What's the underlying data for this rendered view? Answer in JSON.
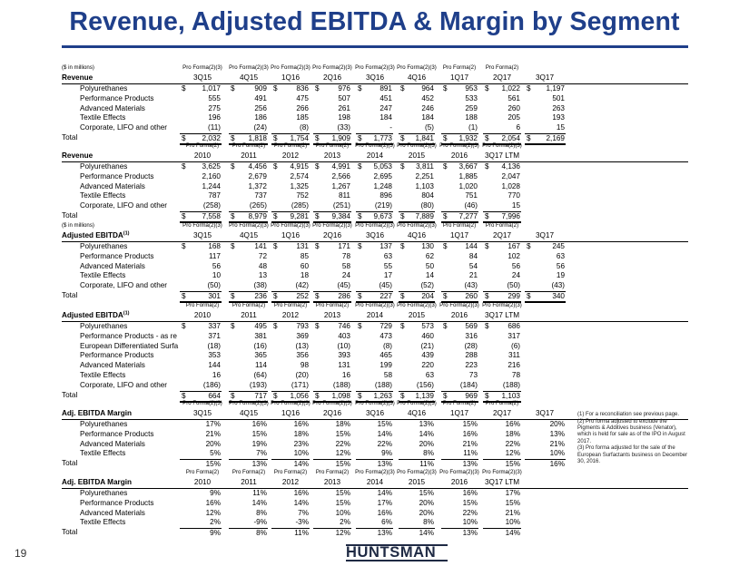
{
  "title": "Revenue, Adjusted EBITDA & Margin by Segment",
  "page_number": "19",
  "logo_text": "HUNTSMAN",
  "footnotes": [
    "(1) For a reconciliation see previous page.",
    "(2) Pro forma adjusted to exclude the Pigments & Additives business (Venator), which is held for sale as of the IPO in August 2017.",
    "(3) Pro forma adjusted for the sale of the European Surfactants business on December 30, 2016."
  ],
  "sections": [
    {
      "id": "rev-q",
      "top": 70,
      "unit": "($ in millions)",
      "title": "Revenue",
      "title_sup": "",
      "title_on_header_row": true,
      "pct": false,
      "pro_forma": [
        "Pro Forma(2)(3)",
        "Pro Forma(2)(3)",
        "Pro Forma(2)(3)",
        "Pro Forma(2)(3)",
        "Pro Forma(2)(3)",
        "Pro Forma(2)(3)",
        "Pro Forma(2)",
        "Pro Forma(2)",
        ""
      ],
      "periods": [
        "3Q15",
        "4Q15",
        "1Q16",
        "2Q16",
        "3Q16",
        "4Q16",
        "1Q17",
        "2Q17",
        "3Q17"
      ],
      "rows": [
        {
          "label": "Polyurethanes",
          "dollar": true,
          "values": [
            "1,017",
            "909",
            "836",
            "976",
            "891",
            "964",
            "953",
            "1,022",
            "1,197"
          ]
        },
        {
          "label": "Performance Products",
          "values": [
            "555",
            "491",
            "475",
            "507",
            "451",
            "452",
            "533",
            "561",
            "501"
          ]
        },
        {
          "label": "Advanced Materials",
          "values": [
            "275",
            "256",
            "266",
            "261",
            "247",
            "246",
            "259",
            "260",
            "263"
          ]
        },
        {
          "label": "Textile Effects",
          "values": [
            "196",
            "186",
            "185",
            "198",
            "184",
            "184",
            "188",
            "205",
            "193"
          ]
        },
        {
          "label": "Corporate, LIFO and other",
          "values": [
            "(11)",
            "(24)",
            "(8)",
            "(33)",
            "-",
            "(5)",
            "(1)",
            "6",
            "15"
          ]
        }
      ],
      "total": {
        "label": "Total",
        "values": [
          "2,032",
          "1,818",
          "1,754",
          "1,909",
          "1,773",
          "1,841",
          "1,932",
          "2,054",
          "2,169"
        ]
      }
    },
    {
      "id": "rev-y",
      "top": 156,
      "unit": "",
      "title": "Revenue",
      "title_sup": "",
      "title_on_header_row": false,
      "pct": false,
      "pro_forma": [
        "Pro Forma(2)",
        "Pro Forma(2)",
        "Pro Forma(2)",
        "Pro Forma(2)",
        "Pro Forma(2)(3)",
        "Pro Forma(2)(3)",
        "Pro Forma(2)(3)",
        "Pro Forma(2)(3)"
      ],
      "periods": [
        "2010",
        "2011",
        "2012",
        "2013",
        "2014",
        "2015",
        "2016",
        "3Q17 LTM"
      ],
      "rows": [
        {
          "label": "Polyurethanes",
          "dollar": true,
          "values": [
            "3,625",
            "4,456",
            "4,915",
            "4,991",
            "5,053",
            "3,811",
            "3,667",
            "4,136"
          ]
        },
        {
          "label": "Performance Products",
          "values": [
            "2,160",
            "2,679",
            "2,574",
            "2,566",
            "2,695",
            "2,251",
            "1,885",
            "2,047"
          ]
        },
        {
          "label": "Advanced Materials",
          "values": [
            "1,244",
            "1,372",
            "1,325",
            "1,267",
            "1,248",
            "1,103",
            "1,020",
            "1,028"
          ]
        },
        {
          "label": "Textile Effects",
          "values": [
            "787",
            "737",
            "752",
            "811",
            "896",
            "804",
            "751",
            "770"
          ]
        },
        {
          "label": "Corporate, LIFO and other",
          "values": [
            "(258)",
            "(265)",
            "(285)",
            "(251)",
            "(219)",
            "(80)",
            "(46)",
            "15"
          ]
        }
      ],
      "total": {
        "label": "Total",
        "values": [
          "7,558",
          "8,979",
          "9,281",
          "9,384",
          "9,673",
          "7,889",
          "7,277",
          "7,996"
        ]
      }
    },
    {
      "id": "ebitda-q",
      "top": 244,
      "unit": "($ in millions)",
      "title": "Adjusted EBITDA",
      "title_sup": "(1)",
      "title_on_header_row": false,
      "pct": false,
      "pro_forma": [
        "Pro Forma(2)(3)",
        "Pro Forma(2)(3)",
        "Pro Forma(2)(3)",
        "Pro Forma(2)(3)",
        "Pro Forma(2)(3)",
        "Pro Forma(2)(3)",
        "Pro Forma(2)",
        "Pro Forma(2)",
        ""
      ],
      "periods": [
        "3Q15",
        "4Q15",
        "1Q16",
        "2Q16",
        "3Q16",
        "4Q16",
        "1Q17",
        "2Q17",
        "3Q17"
      ],
      "rows": [
        {
          "label": "Polyurethanes",
          "dollar": true,
          "values": [
            "168",
            "141",
            "131",
            "171",
            "137",
            "130",
            "144",
            "167",
            "245"
          ]
        },
        {
          "label": "Performance Products",
          "values": [
            "117",
            "72",
            "85",
            "78",
            "63",
            "62",
            "84",
            "102",
            "63"
          ]
        },
        {
          "label": "Advanced Materials",
          "values": [
            "56",
            "48",
            "60",
            "58",
            "55",
            "50",
            "54",
            "56",
            "56"
          ]
        },
        {
          "label": "Textile Effects",
          "values": [
            "10",
            "13",
            "18",
            "24",
            "17",
            "14",
            "21",
            "24",
            "19"
          ]
        },
        {
          "label": "Corporate, LIFO and other",
          "values": [
            "(50)",
            "(38)",
            "(42)",
            "(45)",
            "(45)",
            "(52)",
            "(43)",
            "(50)",
            "(43)"
          ]
        }
      ],
      "total": {
        "label": "Total",
        "values": [
          "301",
          "236",
          "252",
          "286",
          "227",
          "204",
          "260",
          "299",
          "340"
        ]
      }
    },
    {
      "id": "ebitda-y",
      "top": 332,
      "unit": "",
      "title": "Adjusted EBITDA",
      "title_sup": "(1)",
      "title_on_header_row": false,
      "pct": false,
      "pro_forma": [
        "Pro Forma(2)",
        "Pro Forma(2)",
        "Pro Forma(2)",
        "Pro Forma(2)",
        "Pro Forma(2)(3)",
        "Pro Forma(2)(3)",
        "Pro Forma(2)(3)",
        "Pro Forma(2)(3)"
      ],
      "periods": [
        "2010",
        "2011",
        "2012",
        "2013",
        "2014",
        "2015",
        "2016",
        "3Q17 LTM"
      ],
      "rows": [
        {
          "label": "Polyurethanes",
          "dollar": true,
          "values": [
            "337",
            "495",
            "793",
            "746",
            "729",
            "573",
            "569",
            "686"
          ]
        },
        {
          "label": "Performance Products - as re",
          "values": [
            "371",
            "381",
            "369",
            "403",
            "473",
            "460",
            "316",
            "317"
          ]
        },
        {
          "label": "European Differentiated Surfa",
          "values": [
            "(18)",
            "(16)",
            "(13)",
            "(10)",
            "(8)",
            "(21)",
            "(28)",
            "(6)"
          ]
        },
        {
          "label": "Performance Products",
          "values": [
            "353",
            "365",
            "356",
            "393",
            "465",
            "439",
            "288",
            "311"
          ]
        },
        {
          "label": "Advanced Materials",
          "values": [
            "144",
            "114",
            "98",
            "131",
            "199",
            "220",
            "223",
            "216"
          ]
        },
        {
          "label": "Textile Effects",
          "values": [
            "16",
            "(64)",
            "(20)",
            "16",
            "58",
            "63",
            "73",
            "78"
          ]
        },
        {
          "label": "Corporate, LIFO and other",
          "values": [
            "(186)",
            "(193)",
            "(171)",
            "(188)",
            "(188)",
            "(156)",
            "(184)",
            "(188)"
          ]
        }
      ],
      "total": {
        "label": "Total",
        "values": [
          "664",
          "717",
          "1,056",
          "1,098",
          "1,263",
          "1,139",
          "969",
          "1,103"
        ]
      }
    },
    {
      "id": "margin-q",
      "top": 440,
      "unit": "",
      "title": "Adj. EBITDA Margin",
      "title_sup": "",
      "title_on_header_row": false,
      "pct": true,
      "pro_forma": [
        "Pro Forma(2)(3)",
        "Pro Forma(2)(3)",
        "Pro Forma(2)(3)",
        "Pro Forma(2)(3)",
        "Pro Forma(2)(3)",
        "Pro Forma(2)(3)",
        "Pro Forma(2)",
        "Pro Forma(2)",
        ""
      ],
      "periods": [
        "3Q15",
        "4Q15",
        "1Q16",
        "2Q16",
        "3Q16",
        "4Q16",
        "1Q17",
        "2Q17",
        "3Q17"
      ],
      "rows": [
        {
          "label": "Polyurethanes",
          "values": [
            "17%",
            "16%",
            "16%",
            "18%",
            "15%",
            "13%",
            "15%",
            "16%",
            "20%"
          ]
        },
        {
          "label": "Performance Products",
          "values": [
            "21%",
            "15%",
            "18%",
            "15%",
            "14%",
            "14%",
            "16%",
            "18%",
            "13%"
          ]
        },
        {
          "label": "Advanced Materials",
          "values": [
            "20%",
            "19%",
            "23%",
            "22%",
            "22%",
            "20%",
            "21%",
            "22%",
            "21%"
          ]
        },
        {
          "label": "Textile Effects",
          "values": [
            "5%",
            "7%",
            "10%",
            "12%",
            "9%",
            "8%",
            "11%",
            "12%",
            "10%"
          ]
        }
      ],
      "total": {
        "label": "Total",
        "values": [
          "15%",
          "13%",
          "14%",
          "15%",
          "13%",
          "11%",
          "13%",
          "15%",
          "16%"
        ]
      }
    },
    {
      "id": "margin-y",
      "top": 516,
      "unit": "",
      "title": "Adj. EBITDA Margin",
      "title_sup": "",
      "title_on_header_row": false,
      "pct": true,
      "pro_forma": [
        "Pro Forma(2)",
        "Pro Forma(2)",
        "Pro Forma(2)",
        "Pro Forma(2)",
        "Pro Forma(2)(3)",
        "Pro Forma(2)(3)",
        "Pro Forma(2)(3)",
        "Pro Forma(2)(3)"
      ],
      "periods": [
        "2010",
        "2011",
        "2012",
        "2013",
        "2014",
        "2015",
        "2016",
        "3Q17 LTM"
      ],
      "rows": [
        {
          "label": "Polyurethanes",
          "values": [
            "9%",
            "11%",
            "16%",
            "15%",
            "14%",
            "15%",
            "16%",
            "17%"
          ]
        },
        {
          "label": "Performance Products",
          "values": [
            "16%",
            "14%",
            "14%",
            "15%",
            "17%",
            "20%",
            "15%",
            "15%"
          ]
        },
        {
          "label": "Advanced Materials",
          "values": [
            "12%",
            "8%",
            "7%",
            "10%",
            "16%",
            "20%",
            "22%",
            "21%"
          ]
        },
        {
          "label": "Textile Effects",
          "values": [
            "2%",
            "-9%",
            "-3%",
            "2%",
            "6%",
            "8%",
            "10%",
            "10%"
          ]
        }
      ],
      "total": {
        "label": "Total",
        "values": [
          "9%",
          "8%",
          "11%",
          "12%",
          "13%",
          "14%",
          "13%",
          "14%"
        ]
      }
    }
  ]
}
